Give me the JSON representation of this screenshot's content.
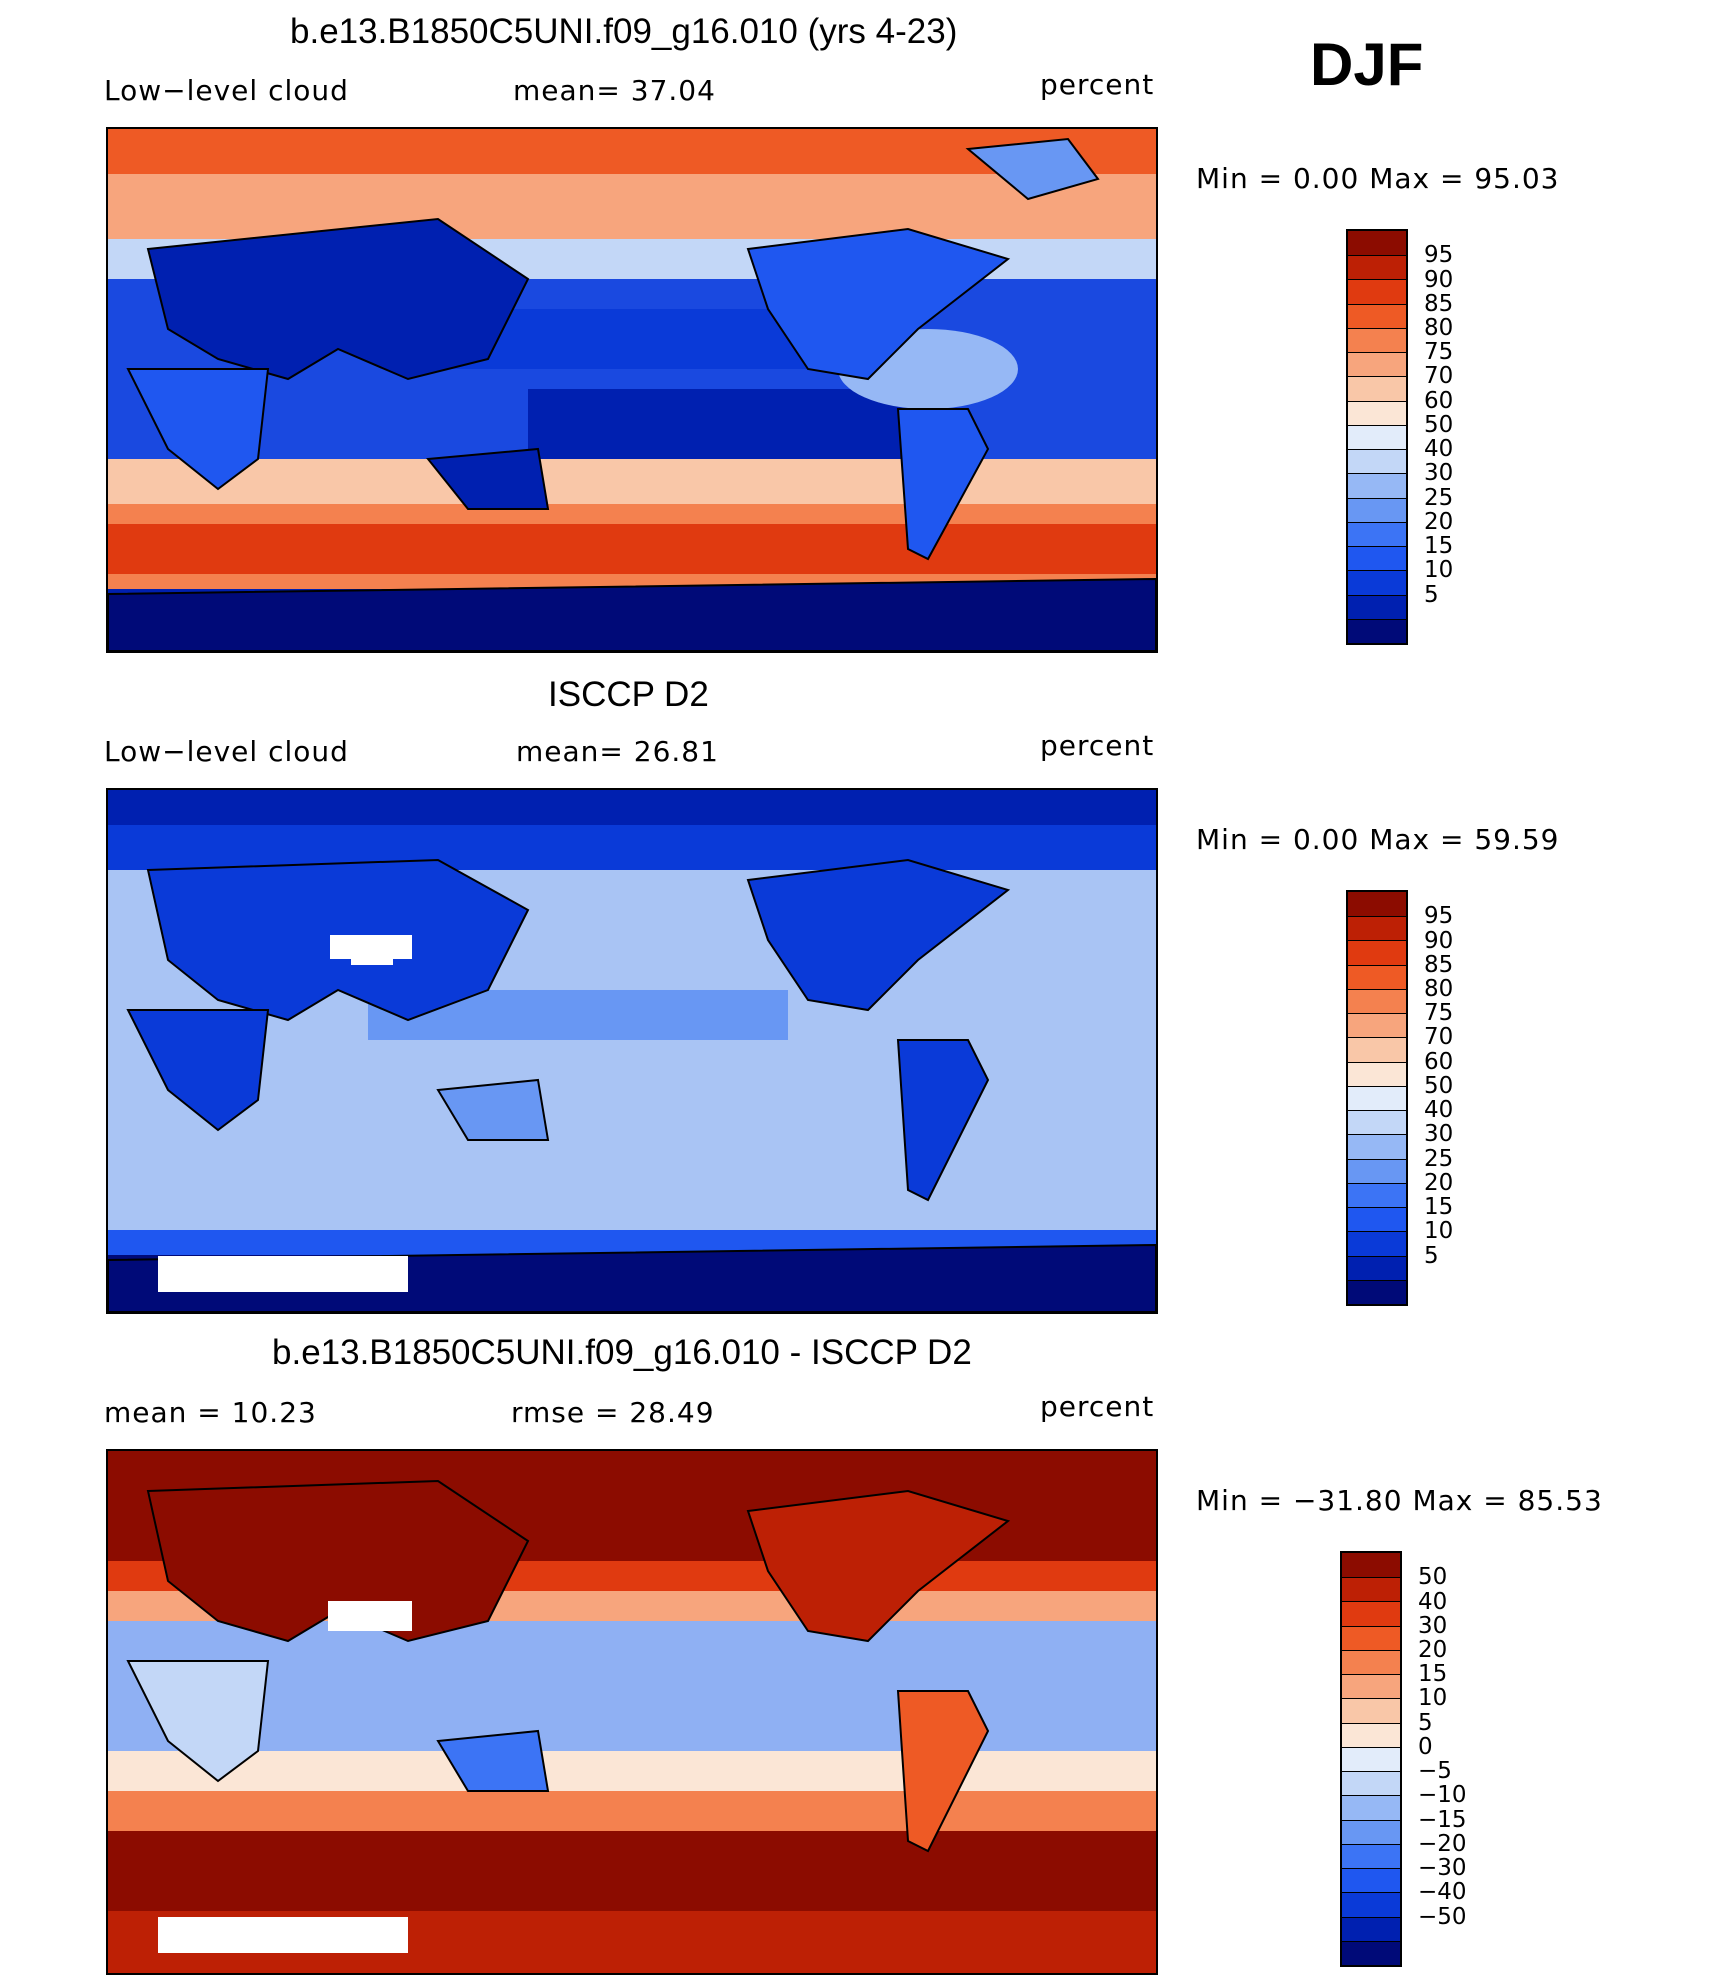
{
  "season": "DJF",
  "panels": [
    {
      "title": "b.e13.B1850C5UNI.f09_g16.010 (yrs 4-23)",
      "left_label": "Low−level cloud",
      "mid_label": "mean=  37.04",
      "units": "percent",
      "minmax": "Min =    0.00 Max =   95.03",
      "palette": [
        "#000a78",
        "#0020b0",
        "#0a3ad8",
        "#1f57f0",
        "#3c74f5",
        "#6897f3",
        "#96b8f5",
        "#c3d7f7",
        "#e2ecfa",
        "#fbe6d6",
        "#f9c7a8",
        "#f7a57d",
        "#f4814f",
        "#ee5a25",
        "#e03a10",
        "#bd2005",
        "#8c0c00"
      ],
      "colorbar_labels": [
        "95",
        "90",
        "85",
        "80",
        "75",
        "70",
        "60",
        "50",
        "40",
        "30",
        "25",
        "20",
        "15",
        "10",
        "5"
      ],
      "ocean_color": "#1a49e0",
      "icons": [
        "world-map-icon"
      ]
    },
    {
      "title": "ISCCP D2",
      "left_label": "Low−level cloud",
      "mid_label": "mean=  26.81",
      "units": "percent",
      "minmax": "Min =    0.00 Max =   59.59",
      "palette": [
        "#000a78",
        "#0020b0",
        "#0a3ad8",
        "#1f57f0",
        "#3c74f5",
        "#6897f3",
        "#96b8f5",
        "#c3d7f7",
        "#e2ecfa",
        "#fbe6d6",
        "#f9c7a8",
        "#f7a57d",
        "#f4814f",
        "#ee5a25",
        "#e03a10",
        "#bd2005",
        "#8c0c00"
      ],
      "colorbar_labels": [
        "95",
        "90",
        "85",
        "80",
        "75",
        "70",
        "60",
        "50",
        "40",
        "30",
        "25",
        "20",
        "15",
        "10",
        "5"
      ],
      "ocean_color": "#a9c4f4"
    },
    {
      "title": "b.e13.B1850C5UNI.f09_g16.010 - ISCCP D2",
      "left_label": "mean =   10.23",
      "mid_label": "rmse =   28.49",
      "units": "percent",
      "minmax": "Min = −31.80 Max =   85.53",
      "palette": [
        "#000a78",
        "#0020b0",
        "#0a3ad8",
        "#1f57f0",
        "#3c74f5",
        "#6897f3",
        "#96b8f5",
        "#c3d7f7",
        "#e2ecfa",
        "#fbe6d6",
        "#f9c7a8",
        "#f7a57d",
        "#f4814f",
        "#ee5a25",
        "#e03a10",
        "#bd2005",
        "#8c0c00"
      ],
      "colorbar_labels": [
        "50",
        "40",
        "30",
        "20",
        "15",
        "10",
        "5",
        "0",
        "−5",
        "−10",
        "−15",
        "−20",
        "−30",
        "−40",
        "−50"
      ],
      "ocean_color": "#8fb0f3"
    }
  ]
}
